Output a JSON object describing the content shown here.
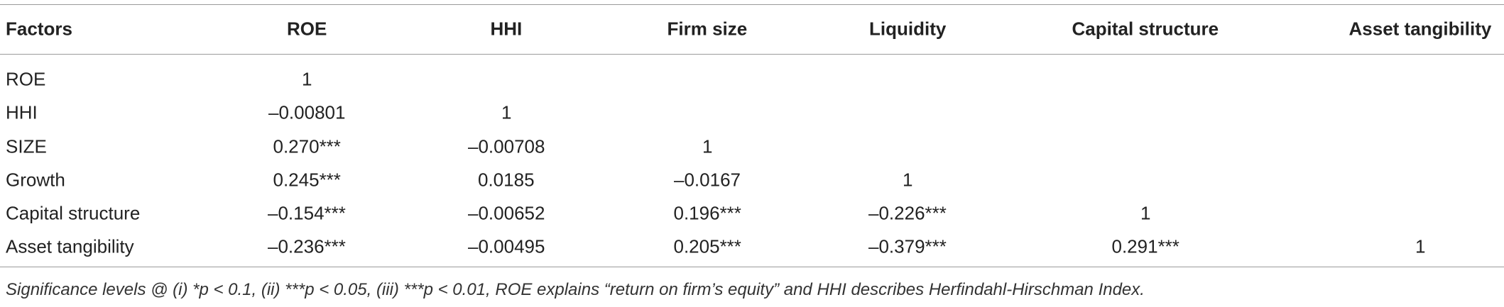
{
  "table": {
    "header": [
      "Factors",
      "ROE",
      "HHI",
      "Firm size",
      "Liquidity",
      "Capital structure",
      "Asset tangibility"
    ],
    "rows": [
      [
        "ROE",
        "1"
      ],
      [
        "HHI",
        "–0.00801",
        "1"
      ],
      [
        "SIZE",
        "0.270***",
        "–0.00708",
        "1"
      ],
      [
        "Growth",
        "0.245***",
        "0.0185",
        "–0.0167",
        "1"
      ],
      [
        "Capital structure",
        "–0.154***",
        "–0.00652",
        "0.196***",
        "–0.226***",
        "1"
      ],
      [
        "Asset tangibility",
        "–0.236***",
        "–0.00495",
        "0.205***",
        "–0.379***",
        "0.291***",
        "1"
      ]
    ]
  },
  "footnote": "Significance levels @ (i) *p < 0.1, (ii) ***p < 0.05, (iii) ***p < 0.01, ROE explains “return on firm’s equity” and HHI describes Herfindahl-Hirschman Index."
}
